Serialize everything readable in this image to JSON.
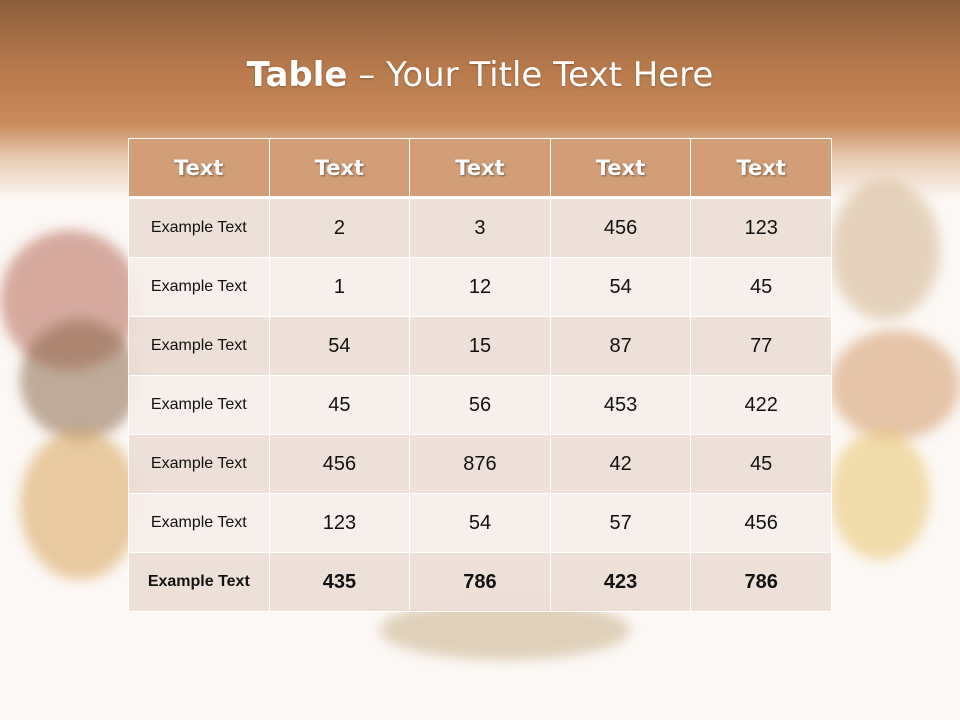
{
  "slide": {
    "title_bold": "Table",
    "title_rest": " – Your Title Text Here"
  },
  "table": {
    "headers": [
      "Text",
      "Text",
      "Text",
      "Text",
      "Text"
    ],
    "rows": [
      [
        "Example Text",
        "2",
        "3",
        "456",
        "123"
      ],
      [
        "Example Text",
        "1",
        "12",
        "54",
        "45"
      ],
      [
        "Example Text",
        "54",
        "15",
        "87",
        "77"
      ],
      [
        "Example Text",
        "45",
        "56",
        "453",
        "422"
      ],
      [
        "Example Text",
        "456",
        "876",
        "42",
        "45"
      ],
      [
        "Example Text",
        "123",
        "54",
        "57",
        "456"
      ],
      [
        "Example Text",
        "435",
        "786",
        "423",
        "786"
      ]
    ]
  },
  "colors": {
    "header": "#d29e78",
    "band_top": "#8c5e3c",
    "row_odd": "#ecded5",
    "row_even": "#f6eeea"
  }
}
